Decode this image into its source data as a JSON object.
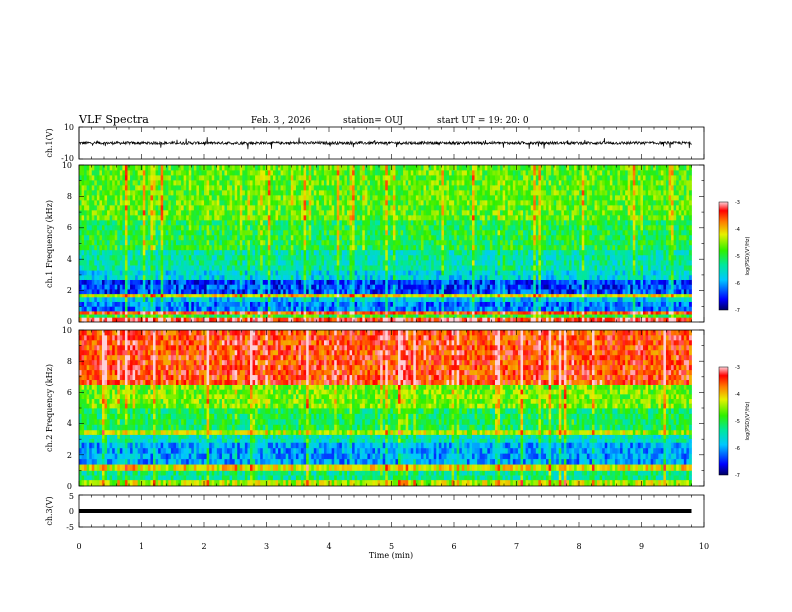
{
  "header": {
    "title": "VLF Spectra",
    "date": "Feb. 3 , 2026",
    "station": "station= OUJ",
    "start_time": "start  UT =   19: 20: 0"
  },
  "chart_data": [
    {
      "type": "line",
      "panel": "ch1-waveform",
      "ylabel": "ch.1(V)",
      "ylim": [
        -10,
        10
      ],
      "yticks": [
        "10",
        "-10"
      ],
      "xlim": [
        0,
        10
      ],
      "series": [
        {
          "name": "ch.1",
          "baseline": 0,
          "typical_amplitude": 1.5,
          "spike_amplitude": 4
        }
      ]
    },
    {
      "type": "heatmap",
      "panel": "ch1-spectrogram",
      "ylabel": "ch.1 Frequency (kHz)",
      "ylim": [
        0,
        10
      ],
      "yticks": [
        "0",
        "2",
        "4",
        "6",
        "8",
        "10"
      ],
      "xlim": [
        0,
        10
      ],
      "data_end_min": 9.8,
      "colorbar": {
        "label": "log(PSD)(V²/Hz)",
        "ticks": [
          "-3",
          "-4",
          "-5",
          "-6",
          "-7"
        ],
        "range": [
          -7,
          -3
        ]
      },
      "bands": [
        {
          "f_from": 0,
          "f_to": 0.3,
          "level": -3.3
        },
        {
          "f_from": 0.3,
          "f_to": 0.5,
          "level": -4.9
        },
        {
          "f_from": 0.5,
          "f_to": 0.7,
          "level": -3.5
        },
        {
          "f_from": 0.7,
          "f_to": 1.3,
          "level": -6.2
        },
        {
          "f_from": 1.3,
          "f_to": 1.6,
          "level": -5.8
        },
        {
          "f_from": 1.6,
          "f_to": 1.8,
          "level": -4.2
        },
        {
          "f_from": 1.8,
          "f_to": 2.7,
          "level": -6.4
        },
        {
          "f_from": 2.7,
          "f_to": 3.3,
          "level": -5.7
        },
        {
          "f_from": 3.3,
          "f_to": 4.6,
          "level": -5.4
        },
        {
          "f_from": 4.6,
          "f_to": 6.5,
          "level": -5.0
        },
        {
          "f_from": 6.5,
          "f_to": 10,
          "level": -4.7
        }
      ]
    },
    {
      "type": "heatmap",
      "panel": "ch2-spectrogram",
      "ylabel": "ch.2 Frequency (kHz)",
      "ylim": [
        0,
        10
      ],
      "yticks": [
        "0",
        "2",
        "4",
        "6",
        "8",
        "10"
      ],
      "xlim": [
        0,
        10
      ],
      "data_end_min": 9.8,
      "colorbar": {
        "label": "log(PSD)(V²/Hz)",
        "ticks": [
          "-3",
          "-4",
          "-5",
          "-6",
          "-7"
        ],
        "range": [
          -7,
          -3
        ]
      },
      "bands": [
        {
          "f_from": 0,
          "f_to": 0.4,
          "level": -4.4
        },
        {
          "f_from": 0.4,
          "f_to": 1.0,
          "level": -5.3
        },
        {
          "f_from": 1.0,
          "f_to": 1.4,
          "level": -4.2
        },
        {
          "f_from": 1.4,
          "f_to": 2.8,
          "level": -6.0
        },
        {
          "f_from": 2.8,
          "f_to": 3.3,
          "level": -5.5
        },
        {
          "f_from": 3.3,
          "f_to": 3.6,
          "level": -4.4
        },
        {
          "f_from": 3.6,
          "f_to": 5.0,
          "level": -5.1
        },
        {
          "f_from": 5.0,
          "f_to": 6.5,
          "level": -4.6
        },
        {
          "f_from": 6.5,
          "f_to": 10,
          "level": -3.5
        }
      ]
    },
    {
      "type": "line",
      "panel": "ch3-waveform",
      "ylabel": "ch.3(V)",
      "ylim": [
        -5,
        5
      ],
      "yticks": [
        "5",
        "0",
        "-5"
      ],
      "xlim": [
        0,
        10
      ],
      "series": [
        {
          "name": "ch.3",
          "value": 0
        }
      ]
    }
  ],
  "xaxis": {
    "label": "Time  (min)",
    "ticks": [
      "0",
      "1",
      "2",
      "3",
      "4",
      "5",
      "6",
      "7",
      "8",
      "9",
      "10"
    ]
  }
}
